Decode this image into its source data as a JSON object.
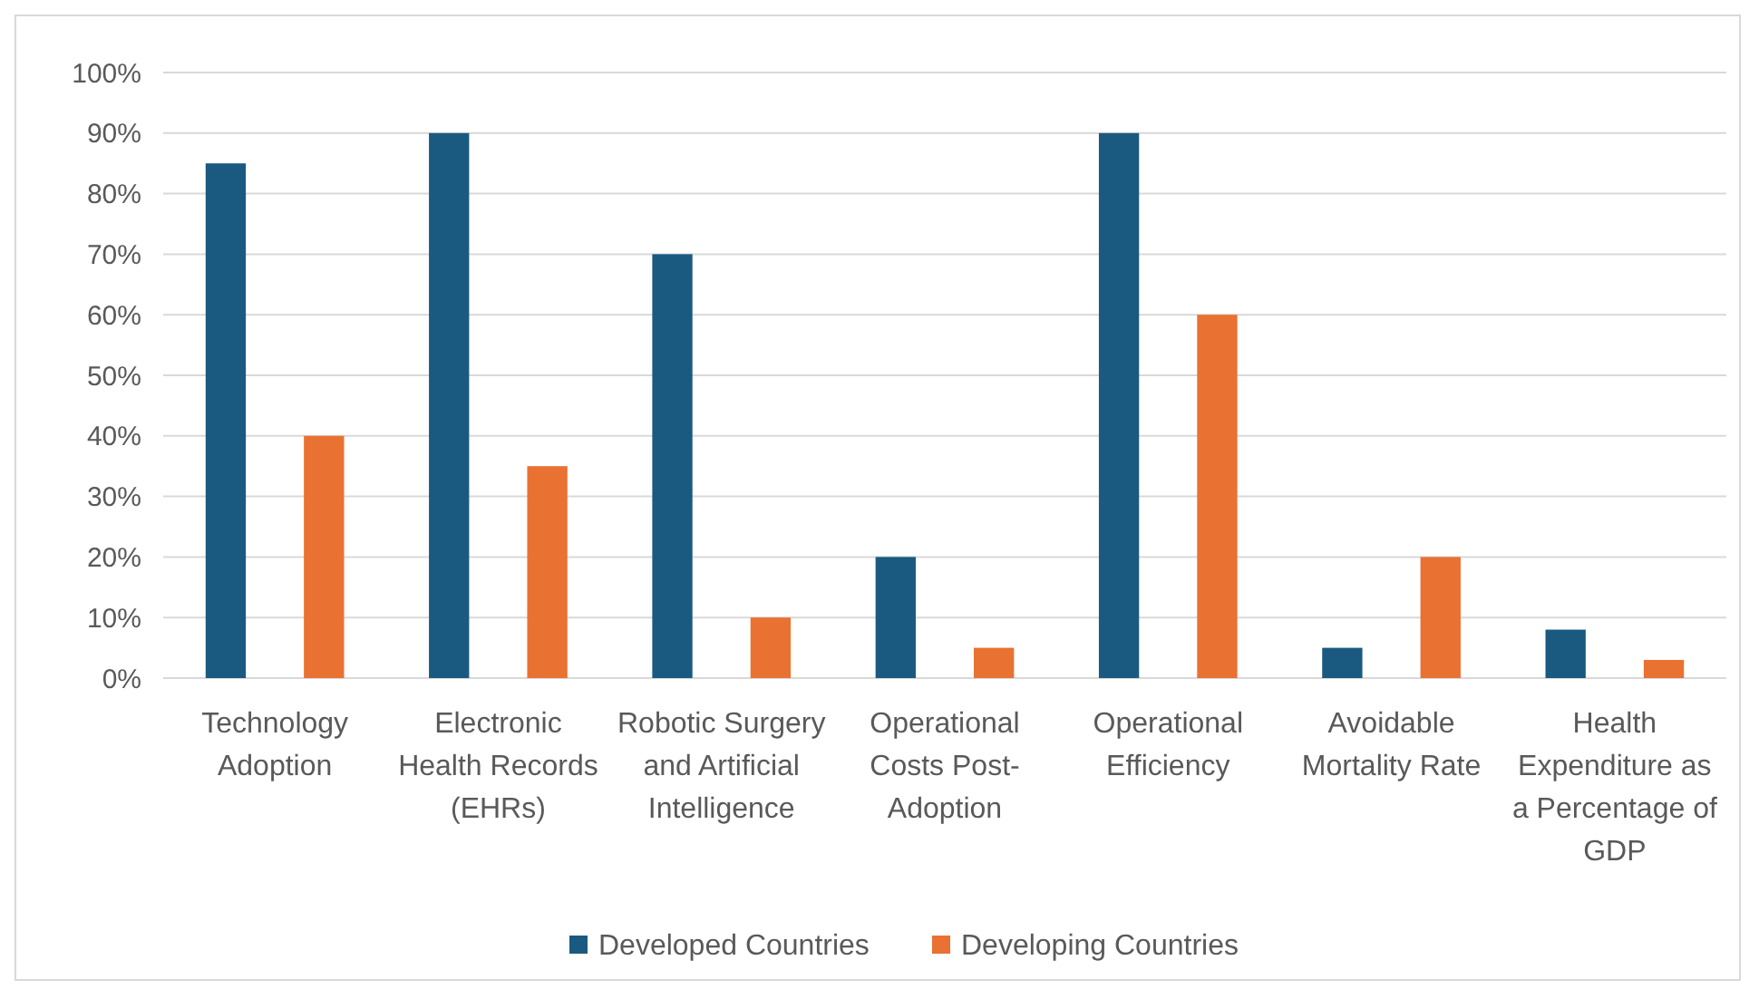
{
  "chart_data": {
    "type": "bar",
    "categories": [
      "Technology Adoption",
      "Electronic Health Records (EHRs)",
      "Robotic Surgery and Artificial Intelligence",
      "Operational Costs Post-Adoption",
      "Operational Efficiency",
      "Avoidable Mortality Rate",
      "Health Expenditure as a Percentage of GDP"
    ],
    "series": [
      {
        "name": "Developed Countries",
        "color": "#1a5a80",
        "values": [
          85,
          90,
          70,
          20,
          90,
          5,
          8
        ]
      },
      {
        "name": "Developing Countries",
        "color": "#e97132",
        "values": [
          40,
          35,
          10,
          5,
          60,
          20,
          3
        ]
      }
    ],
    "ylim": [
      0,
      100
    ],
    "yticks": [
      {
        "value": 0,
        "label": "0%"
      },
      {
        "value": 10,
        "label": "10%"
      },
      {
        "value": 20,
        "label": "20%"
      },
      {
        "value": 30,
        "label": "30%"
      },
      {
        "value": 40,
        "label": "40%"
      },
      {
        "value": 50,
        "label": "50%"
      },
      {
        "value": 60,
        "label": "60%"
      },
      {
        "value": 70,
        "label": "70%"
      },
      {
        "value": 80,
        "label": "80%"
      },
      {
        "value": 90,
        "label": "90%"
      },
      {
        "value": 100,
        "label": "100%"
      }
    ],
    "grid": "y",
    "legend": "bottom"
  }
}
